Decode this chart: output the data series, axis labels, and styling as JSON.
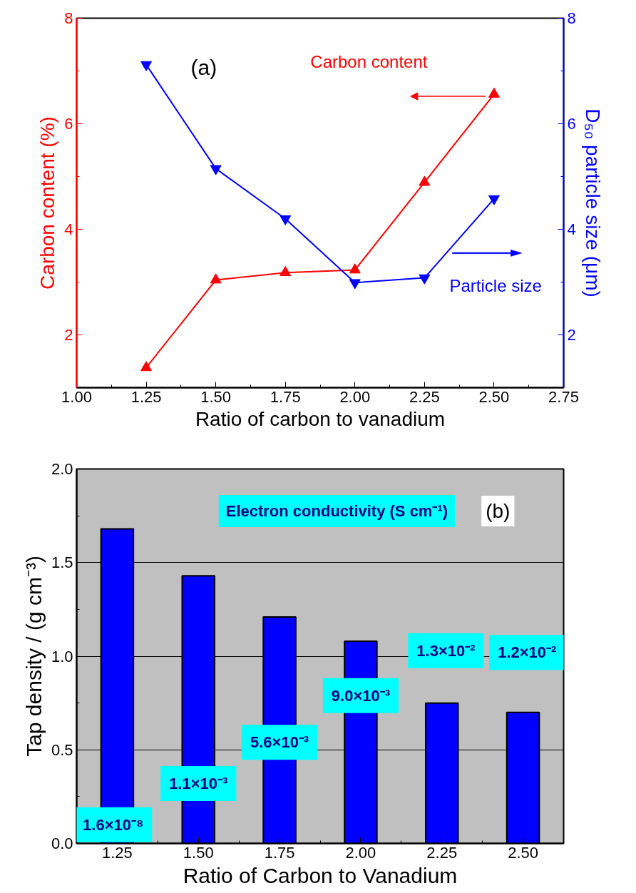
{
  "chart_data": [
    {
      "type": "line",
      "xlabel": "Ratio of carbon to vanadium",
      "ylabel": "Carbon content (%)",
      "y2label": "D₅₀ particle size (μm)",
      "x": [
        1.25,
        1.5,
        1.75,
        2.0,
        2.25,
        2.5
      ],
      "series": [
        {
          "name": "Carbon content",
          "color": "#ff0000",
          "marker": "triangle",
          "values": [
            1.38,
            3.04,
            3.18,
            3.23,
            4.89,
            6.56
          ]
        },
        {
          "name": "Particle size",
          "color": "#0000ff",
          "marker": "triangle",
          "axis": "y2",
          "values": [
            7.12,
            5.15,
            4.2,
            2.99,
            3.08,
            4.58
          ]
        }
      ],
      "xlim": [
        1.0,
        2.75
      ],
      "xticks": [
        {
          "value": 1.0,
          "label": "1.00"
        },
        {
          "value": 1.25,
          "label": "1.25"
        },
        {
          "value": 1.5,
          "label": "1.50"
        },
        {
          "value": 1.75,
          "label": "1.75"
        },
        {
          "value": 2.0,
          "label": "2.00"
        },
        {
          "value": 2.25,
          "label": "2.25"
        },
        {
          "value": 2.5,
          "label": "2.50"
        },
        {
          "value": 2.75,
          "label": "2.75"
        }
      ],
      "ylim": [
        1,
        8
      ],
      "yticks": [
        2,
        4,
        6,
        8
      ],
      "y2lim": [
        1,
        8
      ],
      "y2ticks": [
        2,
        4,
        6,
        8
      ],
      "annotations": [
        "(a)"
      ],
      "grid": false,
      "legend": "right"
    },
    {
      "type": "bar",
      "xlabel": "Ratio of Carbon to Vanadium",
      "ylabel": "Tap density / (g cm⁻³)",
      "categories": [
        "1.25",
        "1.50",
        "1.75",
        "2.00",
        "2.25",
        "2.50"
      ],
      "values": [
        1.68,
        1.43,
        1.21,
        1.08,
        0.75,
        0.7
      ],
      "color": "#0000ff",
      "ylim": [
        0,
        2.0
      ],
      "yticks": [
        {
          "value": 0,
          "label": "0.0"
        },
        {
          "value": 0.5,
          "label": "0.5"
        },
        {
          "value": 1.0,
          "label": "1.0"
        },
        {
          "value": 1.5,
          "label": "1.5"
        },
        {
          "value": 2.0,
          "label": "2.0"
        }
      ],
      "grid": "y",
      "legend": false,
      "annotations": [
        "Electron conductivity (S cm⁻¹)",
        "(b)",
        "1.6×10⁻⁸",
        "1.1×10⁻³",
        "5.6×10⁻³",
        "9.0×10⁻³",
        "1.3×10⁻²",
        "1.2×10⁻²"
      ]
    }
  ]
}
